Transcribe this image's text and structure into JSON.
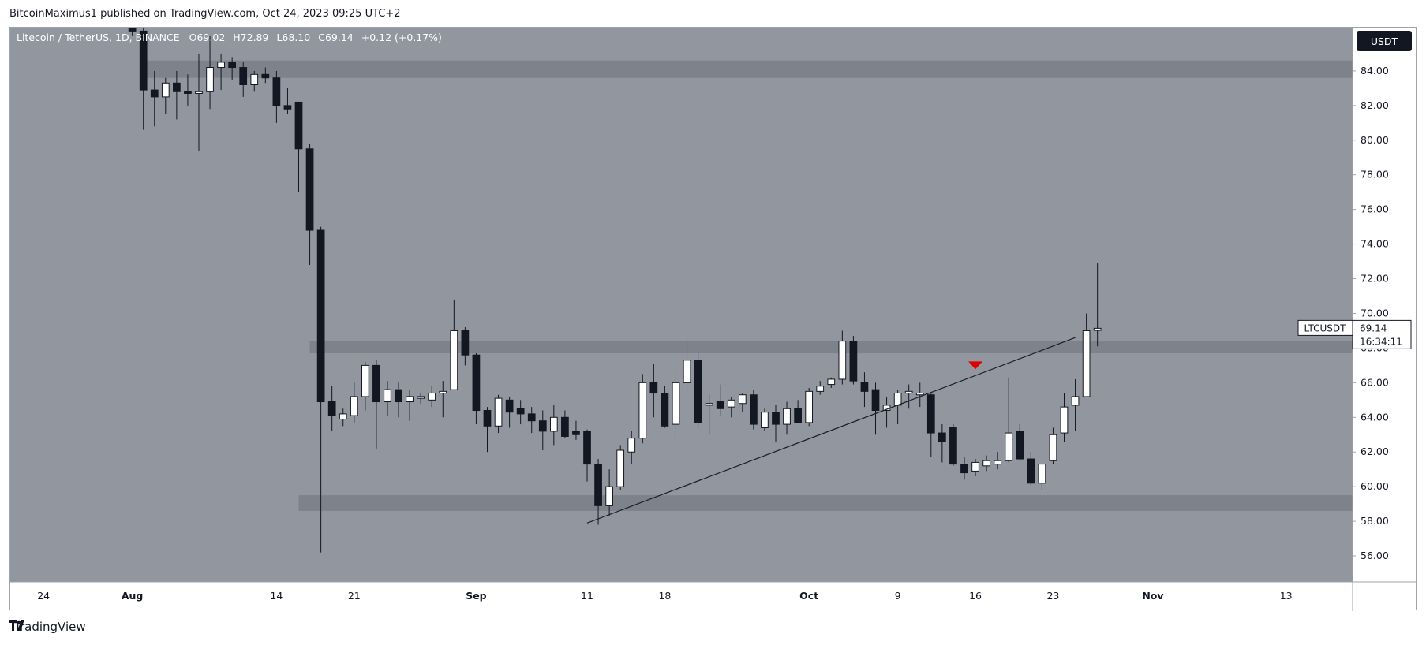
{
  "header": {
    "publisher": "BitcoinMaximus1 published on TradingView.com, Oct 24, 2023 09:25 UTC+2"
  },
  "footer": {
    "brand": "TradingView",
    "logo_icon": "tradingview-logo-icon"
  },
  "legend": {
    "symbol": "Litecoin / TetherUS, 1D, BINANCE",
    "open_label": "O",
    "open": "69.02",
    "high_label": "H",
    "high": "72.89",
    "low_label": "L",
    "low": "68.10",
    "close_label": "C",
    "close": "69.14",
    "change": "+0.12 (+0.17%)"
  },
  "currency_button": "USDT",
  "price_tag": {
    "symbol": "LTCUSDT",
    "price": "69.14",
    "countdown": "16:34:11"
  },
  "colors": {
    "plot_background": "#92969e",
    "zone": "#7e828b",
    "bull_candle": "#ffffff",
    "bear_candle": "#131722",
    "marker": "#e00000",
    "trendline": "#1c1f26"
  },
  "chart_data": {
    "type": "candlestick",
    "title": "Litecoin / TetherUS, 1D, BINANCE",
    "ylim": [
      54.5,
      86.5
    ],
    "y_ticks": [
      "56.00",
      "58.00",
      "60.00",
      "62.00",
      "64.00",
      "66.00",
      "68.00",
      "70.00",
      "72.00",
      "74.00",
      "76.00",
      "78.00",
      "80.00",
      "82.00",
      "84.00"
    ],
    "x_start": "2023-07-21",
    "x_end": "2023-11-19",
    "x_ticks": [
      {
        "date": "2023-07-24",
        "label": "24"
      },
      {
        "date": "2023-08-01",
        "label": "Aug"
      },
      {
        "date": "2023-08-14",
        "label": "14"
      },
      {
        "date": "2023-08-21",
        "label": "21"
      },
      {
        "date": "2023-09-01",
        "label": "Sep"
      },
      {
        "date": "2023-09-11",
        "label": "11"
      },
      {
        "date": "2023-09-18",
        "label": "18"
      },
      {
        "date": "2023-10-01",
        "label": "Oct"
      },
      {
        "date": "2023-10-09",
        "label": "9"
      },
      {
        "date": "2023-10-16",
        "label": "16"
      },
      {
        "date": "2023-10-23",
        "label": "23"
      },
      {
        "date": "2023-11-01",
        "label": "Nov"
      },
      {
        "date": "2023-11-13",
        "label": "13"
      }
    ],
    "grid": false,
    "zones": [
      {
        "from_date": "2023-08-02",
        "to_date": "2023-11-19",
        "low": 83.6,
        "high": 84.6
      },
      {
        "from_date": "2023-08-17",
        "to_date": "2023-11-19",
        "low": 67.7,
        "high": 68.4
      },
      {
        "from_date": "2023-08-16",
        "to_date": "2023-11-19",
        "low": 58.6,
        "high": 59.5
      }
    ],
    "trendline": [
      {
        "date": "2023-09-11",
        "price": 57.9
      },
      {
        "date": "2023-10-25",
        "price": 68.6
      }
    ],
    "marker": {
      "date": "2023-10-16",
      "price": 67.0,
      "shape": "down-triangle"
    },
    "candles": [
      {
        "date": "2023-08-01",
        "o": 88.5,
        "h": 89.5,
        "l": 86.0,
        "c": 86.3
      },
      {
        "date": "2023-08-02",
        "o": 86.3,
        "h": 87.5,
        "l": 80.6,
        "c": 82.9
      },
      {
        "date": "2023-08-03",
        "o": 82.9,
        "h": 84.0,
        "l": 80.8,
        "c": 82.5
      },
      {
        "date": "2023-08-04",
        "o": 82.5,
        "h": 83.6,
        "l": 81.5,
        "c": 83.3
      },
      {
        "date": "2023-08-05",
        "o": 83.3,
        "h": 84.0,
        "l": 81.2,
        "c": 82.8
      },
      {
        "date": "2023-08-06",
        "o": 82.8,
        "h": 83.8,
        "l": 82.0,
        "c": 82.7
      },
      {
        "date": "2023-08-07",
        "o": 82.7,
        "h": 85.0,
        "l": 79.4,
        "c": 82.8
      },
      {
        "date": "2023-08-08",
        "o": 82.8,
        "h": 86.0,
        "l": 81.8,
        "c": 84.2
      },
      {
        "date": "2023-08-09",
        "o": 84.2,
        "h": 85.0,
        "l": 82.9,
        "c": 84.5
      },
      {
        "date": "2023-08-10",
        "o": 84.5,
        "h": 84.8,
        "l": 83.5,
        "c": 84.2
      },
      {
        "date": "2023-08-11",
        "o": 84.2,
        "h": 84.5,
        "l": 82.5,
        "c": 83.2
      },
      {
        "date": "2023-08-12",
        "o": 83.2,
        "h": 84.0,
        "l": 82.8,
        "c": 83.8
      },
      {
        "date": "2023-08-13",
        "o": 83.8,
        "h": 84.2,
        "l": 83.3,
        "c": 83.6
      },
      {
        "date": "2023-08-14",
        "o": 83.6,
        "h": 84.0,
        "l": 81.0,
        "c": 82.0
      },
      {
        "date": "2023-08-15",
        "o": 82.0,
        "h": 83.0,
        "l": 81.5,
        "c": 81.8
      },
      {
        "date": "2023-08-16",
        "o": 82.2,
        "h": 82.2,
        "l": 77.0,
        "c": 79.5
      },
      {
        "date": "2023-08-17",
        "o": 79.5,
        "h": 79.8,
        "l": 72.8,
        "c": 74.8
      },
      {
        "date": "2023-08-18",
        "o": 74.8,
        "h": 75.0,
        "l": 56.2,
        "c": 64.9
      },
      {
        "date": "2023-08-19",
        "o": 64.9,
        "h": 65.8,
        "l": 63.2,
        "c": 64.1
      },
      {
        "date": "2023-08-20",
        "o": 63.9,
        "h": 64.5,
        "l": 63.5,
        "c": 64.2
      },
      {
        "date": "2023-08-21",
        "o": 64.1,
        "h": 66.0,
        "l": 63.7,
        "c": 65.2
      },
      {
        "date": "2023-08-22",
        "o": 65.2,
        "h": 67.2,
        "l": 64.4,
        "c": 67.0
      },
      {
        "date": "2023-08-23",
        "o": 67.0,
        "h": 67.3,
        "l": 62.2,
        "c": 64.9
      },
      {
        "date": "2023-08-24",
        "o": 64.9,
        "h": 66.1,
        "l": 64.1,
        "c": 65.6
      },
      {
        "date": "2023-08-25",
        "o": 65.6,
        "h": 66.0,
        "l": 64.0,
        "c": 64.9
      },
      {
        "date": "2023-08-26",
        "o": 64.9,
        "h": 65.6,
        "l": 63.8,
        "c": 65.2
      },
      {
        "date": "2023-08-27",
        "o": 65.1,
        "h": 65.4,
        "l": 64.8,
        "c": 65.2
      },
      {
        "date": "2023-08-28",
        "o": 65.0,
        "h": 65.8,
        "l": 64.6,
        "c": 65.4
      },
      {
        "date": "2023-08-29",
        "o": 65.4,
        "h": 66.1,
        "l": 64.0,
        "c": 65.5
      },
      {
        "date": "2023-08-30",
        "o": 65.6,
        "h": 70.8,
        "l": 65.6,
        "c": 69.0
      },
      {
        "date": "2023-08-31",
        "o": 69.0,
        "h": 69.2,
        "l": 67.0,
        "c": 67.6
      },
      {
        "date": "2023-09-01",
        "o": 67.6,
        "h": 67.7,
        "l": 63.6,
        "c": 64.4
      },
      {
        "date": "2023-09-02",
        "o": 64.4,
        "h": 64.6,
        "l": 62.0,
        "c": 63.5
      },
      {
        "date": "2023-09-03",
        "o": 63.5,
        "h": 65.3,
        "l": 63.1,
        "c": 65.1
      },
      {
        "date": "2023-09-04",
        "o": 65.0,
        "h": 65.2,
        "l": 63.4,
        "c": 64.3
      },
      {
        "date": "2023-09-05",
        "o": 64.5,
        "h": 65.0,
        "l": 63.6,
        "c": 64.2
      },
      {
        "date": "2023-09-06",
        "o": 64.2,
        "h": 64.6,
        "l": 63.1,
        "c": 63.8
      },
      {
        "date": "2023-09-07",
        "o": 63.8,
        "h": 64.4,
        "l": 62.1,
        "c": 63.2
      },
      {
        "date": "2023-09-08",
        "o": 63.2,
        "h": 64.7,
        "l": 62.4,
        "c": 64.0
      },
      {
        "date": "2023-09-09",
        "o": 64.0,
        "h": 64.4,
        "l": 62.8,
        "c": 62.9
      },
      {
        "date": "2023-09-10",
        "o": 63.2,
        "h": 63.8,
        "l": 62.7,
        "c": 63.0
      },
      {
        "date": "2023-09-11",
        "o": 63.2,
        "h": 63.3,
        "l": 60.3,
        "c": 61.3
      },
      {
        "date": "2023-09-12",
        "o": 61.3,
        "h": 61.6,
        "l": 57.8,
        "c": 58.9
      },
      {
        "date": "2023-09-13",
        "o": 58.9,
        "h": 61.0,
        "l": 58.3,
        "c": 60.0
      },
      {
        "date": "2023-09-14",
        "o": 60.0,
        "h": 62.4,
        "l": 59.8,
        "c": 62.1
      },
      {
        "date": "2023-09-15",
        "o": 62.0,
        "h": 63.2,
        "l": 61.3,
        "c": 62.8
      },
      {
        "date": "2023-09-16",
        "o": 62.8,
        "h": 66.5,
        "l": 62.5,
        "c": 66.0
      },
      {
        "date": "2023-09-17",
        "o": 66.0,
        "h": 67.1,
        "l": 64.0,
        "c": 65.4
      },
      {
        "date": "2023-09-18",
        "o": 65.4,
        "h": 65.8,
        "l": 63.4,
        "c": 63.5
      },
      {
        "date": "2023-09-19",
        "o": 63.6,
        "h": 66.8,
        "l": 62.7,
        "c": 66.0
      },
      {
        "date": "2023-09-20",
        "o": 66.0,
        "h": 68.4,
        "l": 65.6,
        "c": 67.3
      },
      {
        "date": "2023-09-21",
        "o": 67.3,
        "h": 67.8,
        "l": 63.4,
        "c": 63.7
      },
      {
        "date": "2023-09-22",
        "o": 64.7,
        "h": 65.3,
        "l": 63.0,
        "c": 64.8
      },
      {
        "date": "2023-09-23",
        "o": 64.9,
        "h": 65.9,
        "l": 64.1,
        "c": 64.5
      },
      {
        "date": "2023-09-24",
        "o": 64.6,
        "h": 65.2,
        "l": 64.0,
        "c": 65.0
      },
      {
        "date": "2023-09-25",
        "o": 64.8,
        "h": 65.4,
        "l": 64.3,
        "c": 65.3
      },
      {
        "date": "2023-09-26",
        "o": 65.3,
        "h": 65.6,
        "l": 63.3,
        "c": 63.6
      },
      {
        "date": "2023-09-27",
        "o": 63.4,
        "h": 64.5,
        "l": 63.2,
        "c": 64.3
      },
      {
        "date": "2023-09-28",
        "o": 64.3,
        "h": 64.7,
        "l": 62.6,
        "c": 63.6
      },
      {
        "date": "2023-09-29",
        "o": 63.6,
        "h": 64.9,
        "l": 63.0,
        "c": 64.5
      },
      {
        "date": "2023-09-30",
        "o": 64.5,
        "h": 65.0,
        "l": 64.0,
        "c": 63.7
      },
      {
        "date": "2023-10-01",
        "o": 63.7,
        "h": 65.7,
        "l": 63.5,
        "c": 65.5
      },
      {
        "date": "2023-10-02",
        "o": 65.5,
        "h": 66.1,
        "l": 65.3,
        "c": 65.8
      },
      {
        "date": "2023-10-03",
        "o": 65.9,
        "h": 66.3,
        "l": 65.7,
        "c": 66.2
      },
      {
        "date": "2023-10-04",
        "o": 66.2,
        "h": 69.0,
        "l": 65.9,
        "c": 68.4
      },
      {
        "date": "2023-10-05",
        "o": 68.4,
        "h": 68.7,
        "l": 65.9,
        "c": 66.1
      },
      {
        "date": "2023-10-06",
        "o": 66.0,
        "h": 66.6,
        "l": 64.6,
        "c": 65.5
      },
      {
        "date": "2023-10-07",
        "o": 65.6,
        "h": 66.0,
        "l": 63.0,
        "c": 64.4
      },
      {
        "date": "2023-10-08",
        "o": 64.4,
        "h": 65.2,
        "l": 63.4,
        "c": 64.7
      },
      {
        "date": "2023-10-09",
        "o": 64.7,
        "h": 65.6,
        "l": 63.6,
        "c": 65.4
      },
      {
        "date": "2023-10-10",
        "o": 65.4,
        "h": 65.9,
        "l": 64.5,
        "c": 65.5
      },
      {
        "date": "2023-10-11",
        "o": 65.3,
        "h": 66.0,
        "l": 64.6,
        "c": 65.4
      },
      {
        "date": "2023-10-12",
        "o": 65.3,
        "h": 65.4,
        "l": 61.7,
        "c": 63.1
      },
      {
        "date": "2023-10-13",
        "o": 63.1,
        "h": 63.6,
        "l": 61.4,
        "c": 62.6
      },
      {
        "date": "2023-10-14",
        "o": 63.4,
        "h": 63.6,
        "l": 61.2,
        "c": 61.3
      },
      {
        "date": "2023-10-15",
        "o": 61.3,
        "h": 61.7,
        "l": 60.4,
        "c": 60.8
      },
      {
        "date": "2023-10-16",
        "o": 60.9,
        "h": 61.6,
        "l": 60.6,
        "c": 61.4
      },
      {
        "date": "2023-10-17",
        "o": 61.2,
        "h": 61.8,
        "l": 60.9,
        "c": 61.5
      },
      {
        "date": "2023-10-18",
        "o": 61.3,
        "h": 62.0,
        "l": 61.0,
        "c": 61.5
      },
      {
        "date": "2023-10-19",
        "o": 61.5,
        "h": 66.3,
        "l": 61.4,
        "c": 63.1
      },
      {
        "date": "2023-10-20",
        "o": 63.2,
        "h": 63.6,
        "l": 61.5,
        "c": 61.6
      },
      {
        "date": "2023-10-21",
        "o": 61.6,
        "h": 62.0,
        "l": 60.1,
        "c": 60.2
      },
      {
        "date": "2023-10-22",
        "o": 60.2,
        "h": 61.3,
        "l": 59.8,
        "c": 61.3
      },
      {
        "date": "2023-10-23",
        "o": 61.5,
        "h": 63.4,
        "l": 61.3,
        "c": 63.0
      },
      {
        "date": "2023-10-24",
        "o": 63.1,
        "h": 65.4,
        "l": 62.6,
        "c": 64.6
      },
      {
        "date": "2023-10-25",
        "o": 64.7,
        "h": 66.2,
        "l": 63.2,
        "c": 65.2
      },
      {
        "date": "2023-10-26",
        "o": 65.2,
        "h": 70.0,
        "l": 65.2,
        "c": 69.0
      },
      {
        "date": "2023-10-27",
        "o": 69.02,
        "h": 72.89,
        "l": 68.1,
        "c": 69.14
      }
    ]
  }
}
